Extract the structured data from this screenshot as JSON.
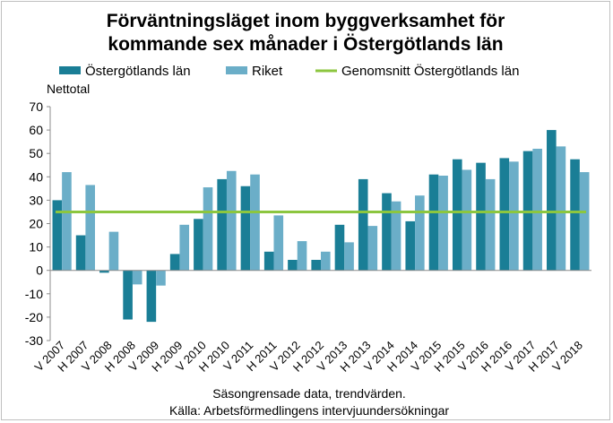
{
  "chart_data": {
    "type": "bar",
    "title_lines": [
      "Förväntningsläget inom byggverksamhet för",
      "kommande sex månader i Östergötlands län"
    ],
    "ylabel": "Nettotal",
    "ylim": [
      -30,
      70
    ],
    "yticks": [
      70,
      60,
      50,
      40,
      30,
      20,
      10,
      0,
      -10,
      -20,
      -30
    ],
    "grid": false,
    "legend_position": "top",
    "categories": [
      "V 2007",
      "H 2007",
      "V 2008",
      "H 2008",
      "V 2009",
      "H 2009",
      "V 2010",
      "H 2010",
      "V 2011",
      "H 2011",
      "V 2012",
      "H 2012",
      "V 2013",
      "H 2013",
      "V 2014",
      "H 2014",
      "V 2015",
      "H 2015",
      "V 2016",
      "H 2016",
      "V 2017",
      "H 2017",
      "V 2018"
    ],
    "series": [
      {
        "name": "Östergötlands län",
        "color": "#1a7e96",
        "values": [
          30,
          15,
          -1,
          -21,
          -22,
          7,
          22,
          39,
          36,
          8,
          4.5,
          4.5,
          19.5,
          39,
          33,
          21,
          41,
          47.5,
          46,
          48,
          51,
          60,
          47.5
        ]
      },
      {
        "name": "Riket",
        "color": "#6baec8",
        "values": [
          42,
          36.5,
          16.5,
          -6,
          -6.5,
          19.5,
          35.5,
          42.5,
          41,
          23.5,
          12.5,
          8,
          12,
          19,
          29.5,
          32,
          40.5,
          43,
          39,
          46.5,
          52,
          53,
          42
        ]
      },
      {
        "name": "Genomsnitt Östergötlands län",
        "type": "line",
        "color": "#8cc63f",
        "value": 25
      }
    ]
  },
  "footer": {
    "line1": "Säsongrensade data, trendvärden.",
    "line2": "Källa: Arbetsförmedlingens intervjuundersökningar"
  }
}
